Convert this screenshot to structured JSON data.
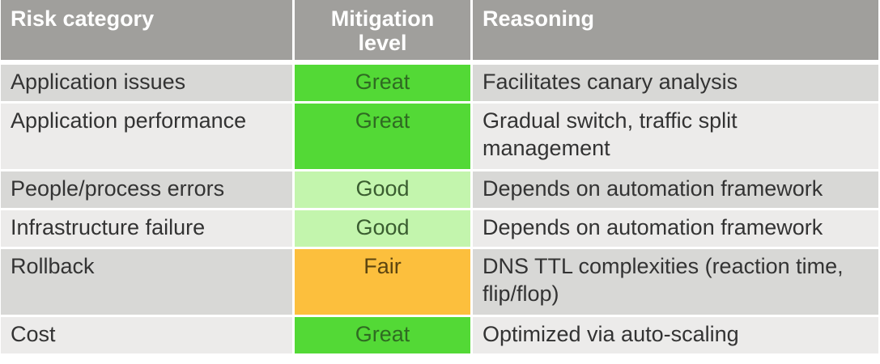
{
  "table": {
    "headers": {
      "risk_category": "Risk category",
      "mitigation_level": "Mitigation level",
      "reasoning": "Reasoning"
    },
    "rows": [
      {
        "category": "Application issues",
        "level": "Great",
        "reasoning": "Facilitates canary analysis"
      },
      {
        "category": "Application performance",
        "level": "Great",
        "reasoning": "Gradual switch, traffic split management"
      },
      {
        "category": "People/process errors",
        "level": "Good",
        "reasoning": "Depends on automation framework"
      },
      {
        "category": "Infrastructure failure",
        "level": "Good",
        "reasoning": "Depends on automation framework"
      },
      {
        "category": "Rollback",
        "level": "Fair",
        "reasoning": "DNS TTL complexities (reaction time, flip/flop)"
      },
      {
        "category": "Cost",
        "level": "Great",
        "reasoning": "Optimized via auto-scaling"
      }
    ]
  },
  "colors": {
    "header_bg": "#a09f9c",
    "great": "#53d936",
    "good": "#c3f5ad",
    "fair": "#fcbf3d"
  }
}
